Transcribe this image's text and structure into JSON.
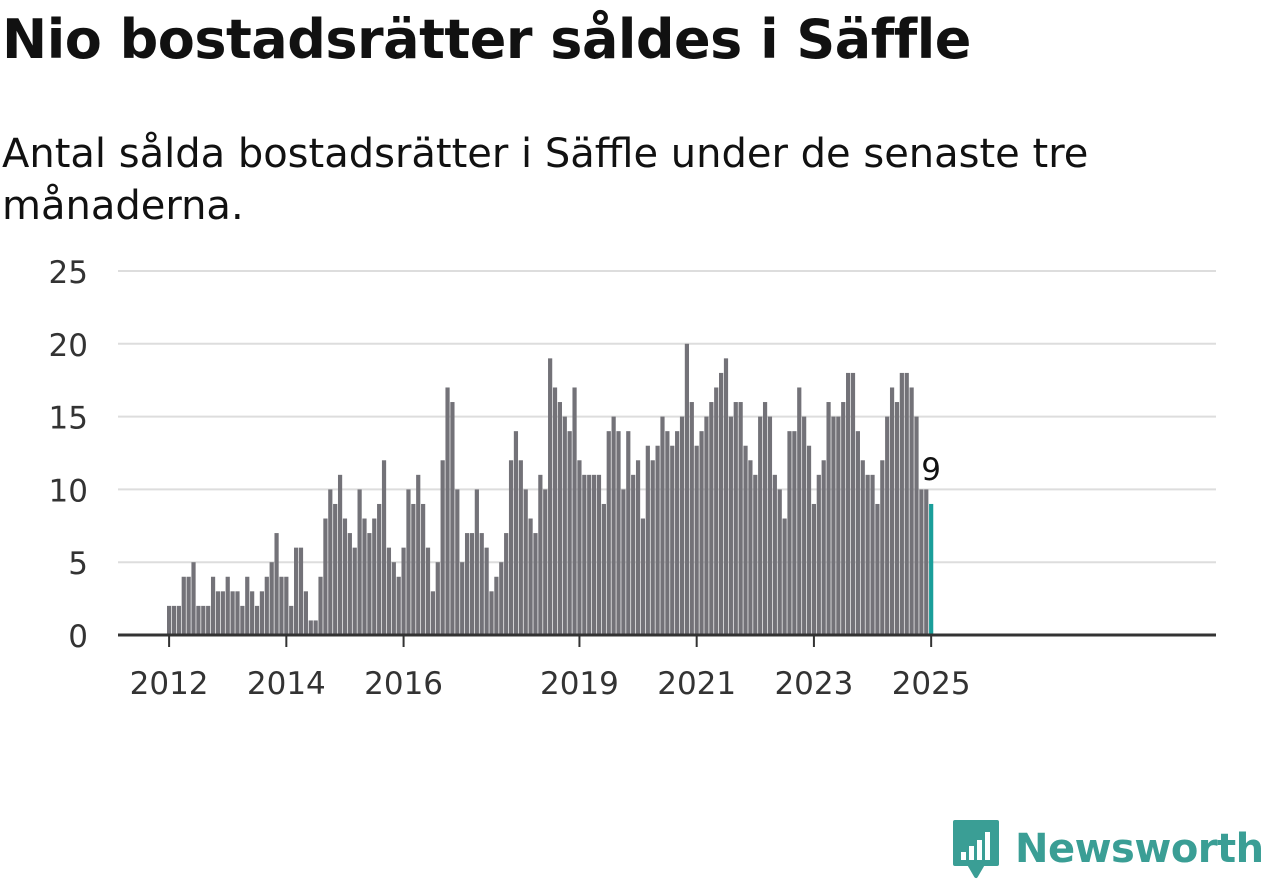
{
  "header": {
    "title": "Nio bostadsrätter såldes i Säffle",
    "subtitle": "Antal sålda bostadsrätter i Säffle under de senaste tre månaderna."
  },
  "colors": {
    "bar": "#737278",
    "highlight": "#1a9e9a",
    "grid": "#dddddd",
    "axis": "#333333",
    "brand": "#3a9e95"
  },
  "logo": {
    "text": "Newsworthy",
    "icon": "bar-chart-badge-icon"
  },
  "chart_data": {
    "type": "bar",
    "xlabel": "",
    "ylabel": "",
    "ylim": [
      0,
      25
    ],
    "yticks": [
      0,
      5,
      10,
      15,
      20,
      25
    ],
    "xticks": [
      "2012",
      "2014",
      "2016",
      "2019",
      "2021",
      "2023",
      "2025"
    ],
    "highlight_label": "9",
    "grid": true,
    "series": [
      {
        "start": "2012-01",
        "frequency": "monthly",
        "values": [
          2,
          2,
          2,
          4,
          4,
          5,
          2,
          2,
          2,
          4,
          3,
          3,
          4,
          3,
          3,
          2,
          4,
          3,
          2,
          3,
          4,
          5,
          7,
          4,
          4,
          2,
          6,
          6,
          3,
          1,
          1,
          4,
          8,
          10,
          9,
          11,
          8,
          7,
          6,
          10,
          8,
          7,
          8,
          9,
          12,
          6,
          5,
          4,
          6,
          10,
          9,
          11,
          9,
          6,
          3,
          5,
          12,
          17,
          16,
          10,
          5,
          7,
          7,
          10,
          7,
          6,
          3,
          4,
          5,
          7,
          12,
          14,
          12,
          10,
          8,
          7,
          11,
          10,
          19,
          17,
          16,
          15,
          14,
          17,
          12,
          11,
          11,
          11,
          11,
          9,
          14,
          15,
          14,
          10,
          14,
          11,
          12,
          8,
          13,
          12,
          13,
          15,
          14,
          13,
          14,
          15,
          20,
          16,
          13,
          14,
          15,
          16,
          17,
          18,
          19,
          15,
          16,
          16,
          13,
          12,
          11,
          15,
          16,
          15,
          11,
          10,
          8,
          14,
          14,
          17,
          15,
          13,
          9,
          11,
          12,
          16,
          15,
          15,
          16,
          18,
          18,
          14,
          12,
          11,
          11,
          9,
          12,
          15,
          17,
          16,
          18,
          18,
          17,
          15,
          10,
          10,
          9
        ]
      }
    ]
  }
}
